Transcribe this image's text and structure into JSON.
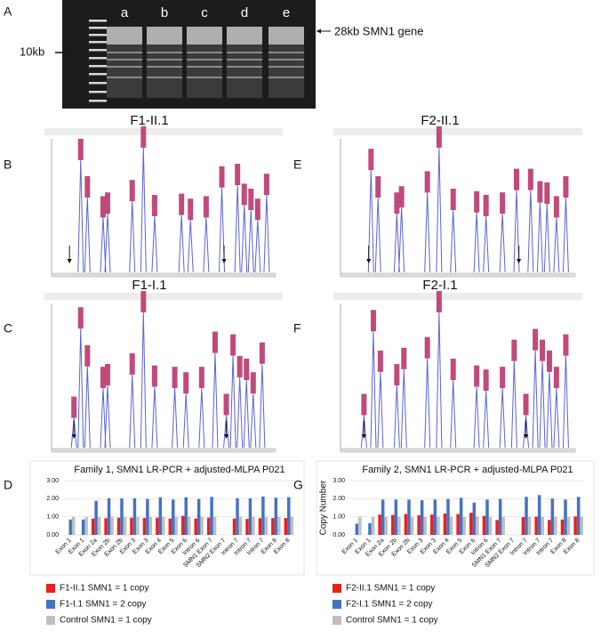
{
  "figure": {
    "panel_labels": [
      "A",
      "B",
      "C",
      "D",
      "E",
      "F",
      "G"
    ],
    "gel": {
      "lanes": [
        "a",
        "b",
        "c",
        "d",
        "e"
      ],
      "marker_label": "10kb",
      "band_label": "28kb SMN1 gene"
    },
    "electropherograms": [
      {
        "title": "F1-II.1"
      },
      {
        "title": "F2-II.1"
      },
      {
        "title": "F1-I.1"
      },
      {
        "title": "F2-I.1"
      }
    ]
  },
  "chart_data": [
    {
      "type": "bar",
      "title": "Family 1, SMN1 LR-PCR + adjusted-MLPA P021",
      "categories": [
        "Exon 1",
        "Exon 1",
        "Exon 2a",
        "Exon 2b",
        "Exon 2b",
        "Exon 3",
        "Exon 3",
        "Exon 4",
        "Exon 5",
        "Exon 6",
        "Intron 6",
        "SMN1 Exon 7",
        "SMN2 Exon 7",
        "Intron 7",
        "Intron 7",
        "Intron 7",
        "Exon 8",
        "Exon 8"
      ],
      "series": [
        {
          "name": "F1-II.1 SMN1 = 1 copy",
          "color": "#e8211d",
          "values": [
            null,
            null,
            0.9,
            0.92,
            0.95,
            0.95,
            0.93,
            0.95,
            0.9,
            1.05,
            0.9,
            0.95,
            null,
            0.9,
            0.88,
            0.92,
            0.93,
            0.93
          ]
        },
        {
          "name": "F1-I.1 SMN1 = 2 copy",
          "color": "#4472c4",
          "values": [
            0.85,
            0.85,
            1.88,
            2.02,
            2.02,
            2.02,
            1.98,
            2.08,
            1.95,
            2.08,
            1.98,
            2.1,
            null,
            2.02,
            2.02,
            2.12,
            2.05,
            2.08
          ]
        },
        {
          "name": "Control SMN1 = 1 copy",
          "color": "#bfbfbf",
          "values": [
            1.0,
            1.0,
            1.0,
            1.0,
            1.0,
            1.0,
            1.0,
            1.0,
            1.0,
            1.0,
            1.0,
            1.0,
            null,
            1.0,
            1.0,
            1.0,
            1.0,
            1.0
          ]
        }
      ],
      "ylim": [
        0,
        3
      ],
      "yticks": [
        {
          "value": 0,
          "label": "0.00"
        },
        {
          "value": 1,
          "label": "1.00"
        },
        {
          "value": 2,
          "label": "2.00"
        },
        {
          "value": 3,
          "label": "3.00"
        }
      ],
      "grid": true,
      "legend": "below"
    },
    {
      "type": "bar",
      "title": "Family 2, SMN1 LR-PCR + adjusted-MLPA P021",
      "y_label": "Copy Number",
      "categories": [
        "Exon 1",
        "Exon 1",
        "Exon 2a",
        "Exon 2b",
        "Exon 2b",
        "Exon 3",
        "Exon 3",
        "Exon 4",
        "Exon 5",
        "Exon 6",
        "Intron 6",
        "SMN1 Exon 7",
        "SMN2 Exon 7",
        "Intron 7",
        "Intron 7",
        "Intron 7",
        "Exon 8",
        "Exon 8"
      ],
      "series": [
        {
          "name": "F2-II.1 SMN1 = 1 copy",
          "color": "#e8211d",
          "values": [
            null,
            null,
            1.12,
            1.1,
            1.15,
            1.08,
            1.12,
            1.18,
            1.15,
            1.22,
            1.05,
            0.82,
            null,
            0.98,
            1.0,
            0.82,
            0.85,
            1.02
          ]
        },
        {
          "name": "F2-I.1 SMN1 = 2 copy",
          "color": "#4472c4",
          "values": [
            0.62,
            0.65,
            1.95,
            1.95,
            1.95,
            1.92,
            1.95,
            1.98,
            2.05,
            1.78,
            1.95,
            1.98,
            null,
            2.1,
            2.2,
            2.0,
            1.95,
            2.1
          ]
        },
        {
          "name": "Control SMN1 = 1 copy",
          "color": "#bfbfbf",
          "values": [
            1.0,
            1.0,
            1.0,
            1.0,
            1.0,
            1.0,
            1.0,
            1.0,
            1.0,
            1.0,
            1.0,
            1.0,
            null,
            1.0,
            1.0,
            1.0,
            1.0,
            1.0
          ]
        }
      ],
      "ylim": [
        0,
        3
      ],
      "yticks": [
        {
          "value": 0,
          "label": "0.00"
        },
        {
          "value": 1,
          "label": "1.00"
        },
        {
          "value": 2,
          "label": "2.00"
        },
        {
          "value": 3,
          "label": "3.00"
        }
      ],
      "grid": true,
      "legend": "below"
    }
  ]
}
